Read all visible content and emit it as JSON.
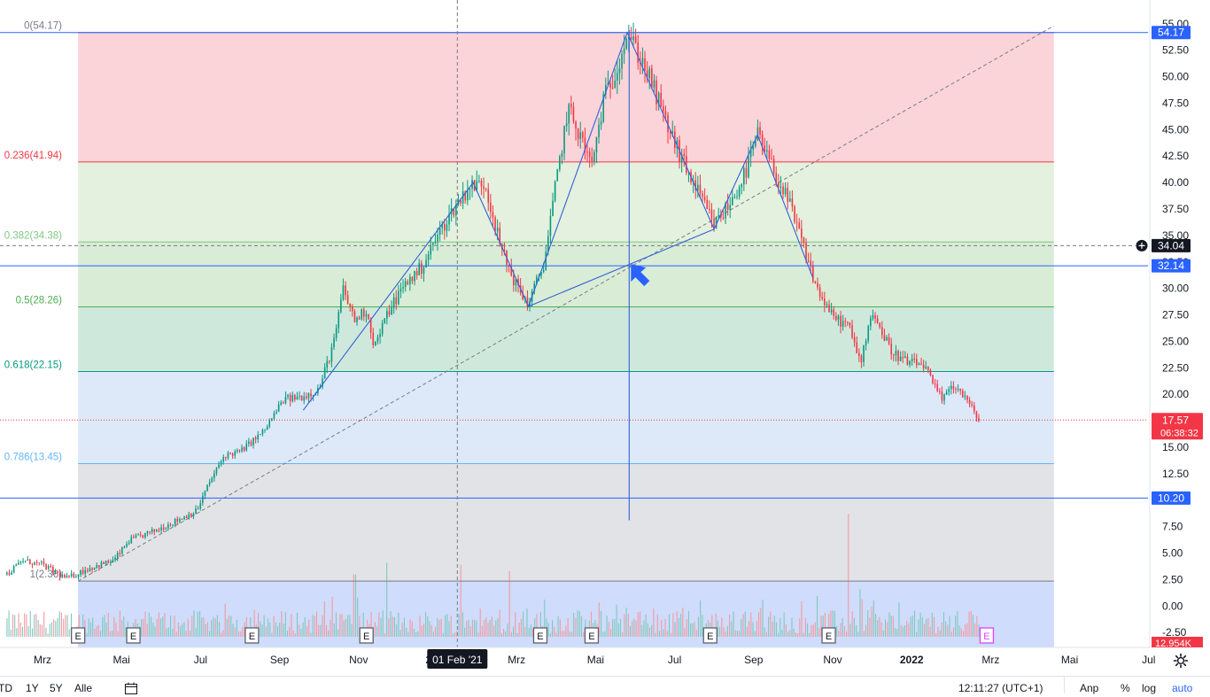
{
  "chart_data": {
    "type": "candlestick",
    "ylim": [
      -2.9,
      55.4
    ],
    "y_ticks": [
      "55.00",
      "52.50",
      "50.00",
      "47.50",
      "45.00",
      "42.50",
      "40.00",
      "37.50",
      "35.00",
      "32.50",
      "30.00",
      "27.50",
      "25.00",
      "22.50",
      "20.00",
      "17.50",
      "15.00",
      "12.50",
      "10.00",
      "7.50",
      "5.00",
      "2.50",
      "0.00",
      "-2.50"
    ],
    "x_ticks": [
      {
        "label": "Mrz",
        "t": 0.0
      },
      {
        "label": "Mai",
        "t": 2.0
      },
      {
        "label": "Jul",
        "t": 4.0
      },
      {
        "label": "Sep",
        "t": 6.0
      },
      {
        "label": "Nov",
        "t": 8.0
      },
      {
        "label": "2021",
        "t": 10.0
      },
      {
        "label": "Mrz",
        "t": 12.0
      },
      {
        "label": "Mai",
        "t": 14.0
      },
      {
        "label": "Jul",
        "t": 16.0
      },
      {
        "label": "Sep",
        "t": 18.0
      },
      {
        "label": "Nov",
        "t": 20.0
      },
      {
        "label": "2022",
        "t": 22.0
      },
      {
        "label": "Mrz",
        "t": 24.0
      },
      {
        "label": "Mai",
        "t": 26.0
      },
      {
        "label": "Jul",
        "t": 28.0
      }
    ],
    "price_path": [
      [
        -0.9,
        3.0
      ],
      [
        -0.5,
        4.3
      ],
      [
        0.0,
        3.9
      ],
      [
        0.6,
        2.6
      ],
      [
        1.2,
        3.6
      ],
      [
        1.8,
        4.3
      ],
      [
        2.2,
        6.2
      ],
      [
        2.9,
        7.2
      ],
      [
        3.4,
        8.1
      ],
      [
        3.9,
        9.0
      ],
      [
        4.2,
        11.5
      ],
      [
        4.6,
        14.2
      ],
      [
        5.0,
        14.6
      ],
      [
        5.6,
        16.5
      ],
      [
        6.1,
        19.5
      ],
      [
        6.6,
        19.8
      ],
      [
        7.0,
        20.5
      ],
      [
        7.4,
        25.2
      ],
      [
        7.6,
        30.0
      ],
      [
        7.9,
        27.0
      ],
      [
        8.2,
        28.0
      ],
      [
        8.4,
        24.5
      ],
      [
        8.8,
        28.2
      ],
      [
        9.2,
        30.5
      ],
      [
        9.6,
        32.0
      ],
      [
        10.0,
        35.0
      ],
      [
        10.4,
        37.5
      ],
      [
        10.8,
        39.6
      ],
      [
        11.2,
        40.0
      ],
      [
        11.6,
        33.8
      ],
      [
        12.0,
        30.2
      ],
      [
        12.3,
        28.5
      ],
      [
        12.7,
        32.5
      ],
      [
        13.0,
        40.0
      ],
      [
        13.3,
        47.0
      ],
      [
        13.6,
        44.5
      ],
      [
        13.9,
        41.5
      ],
      [
        14.2,
        47.8
      ],
      [
        14.5,
        50.5
      ],
      [
        14.8,
        54.17
      ],
      [
        15.3,
        50.5
      ],
      [
        15.8,
        45.5
      ],
      [
        16.2,
        42.0
      ],
      [
        16.6,
        39.0
      ],
      [
        17.0,
        36.0
      ],
      [
        17.4,
        38.0
      ],
      [
        17.8,
        41.0
      ],
      [
        18.1,
        44.5
      ],
      [
        18.4,
        42.0
      ],
      [
        18.9,
        38.0
      ],
      [
        19.3,
        33.5
      ],
      [
        19.6,
        30.0
      ],
      [
        20.0,
        27.3
      ],
      [
        20.4,
        26.5
      ],
      [
        20.7,
        23.0
      ],
      [
        21.0,
        28.0
      ],
      [
        21.2,
        26.2
      ],
      [
        21.5,
        24.0
      ],
      [
        21.9,
        23.0
      ],
      [
        22.3,
        22.8
      ],
      [
        22.6,
        20.5
      ],
      [
        22.8,
        19.4
      ],
      [
        23.0,
        21.0
      ],
      [
        23.3,
        20.0
      ],
      [
        23.5,
        18.8
      ],
      [
        23.7,
        17.57
      ]
    ],
    "volume_spikes": [
      [
        7.9,
        5.9
      ],
      [
        8.7,
        7.0
      ],
      [
        10.6,
        6.8
      ],
      [
        11.8,
        6.2
      ],
      [
        12.7,
        3.5
      ],
      [
        14.3,
        2.0
      ],
      [
        20.4,
        11.6
      ],
      [
        20.7,
        4.5
      ]
    ],
    "earnings_markers": [
      {
        "label": "E",
        "t": 0.9
      },
      {
        "label": "E",
        "t": 2.3
      },
      {
        "label": "E",
        "t": 5.3
      },
      {
        "label": "E",
        "t": 8.2
      },
      {
        "label": "E",
        "t": 12.6
      },
      {
        "label": "E",
        "t": 13.9
      },
      {
        "label": "E",
        "t": 16.9
      },
      {
        "label": "E",
        "t": 19.9
      },
      {
        "label": "E",
        "t": 23.9,
        "upcoming": true
      }
    ],
    "fibonacci": {
      "t_start": 0.9,
      "t_end": 25.6,
      "levels": [
        {
          "ratio": "0",
          "price": 54.17,
          "label": "0(54.17)",
          "fill": "#fad4d8",
          "line": "#787b86",
          "text": "#787b86"
        },
        {
          "ratio": "0.236",
          "price": 41.94,
          "label": "0.236(41.94)",
          "fill": "#e3f1de",
          "line": "#f23645",
          "text": "#f23645"
        },
        {
          "ratio": "0.382",
          "price": 34.38,
          "label": "0.382(34.38)",
          "fill": "#d9ecd5",
          "line": "#81c784",
          "text": "#81c784"
        },
        {
          "ratio": "0.5",
          "price": 28.26,
          "label": "0.5(28.26)",
          "fill": "#cfe8dc",
          "line": "#4caf50",
          "text": "#4caf50"
        },
        {
          "ratio": "0.618",
          "price": 22.15,
          "label": "0.618(22.15)",
          "fill": "#dde9f8",
          "line": "#089981",
          "text": "#089981"
        },
        {
          "ratio": "0.786",
          "price": 13.45,
          "label": "0.786(13.45)",
          "fill": "#e2e3e6",
          "line": "#64b5f6",
          "text": "#64b5f6"
        },
        {
          "ratio": "1",
          "price": 2.36,
          "label": "1(2.36)",
          "fill": "#cfdcfb",
          "line": "#787b86",
          "text": "#787b86"
        }
      ]
    },
    "horizontal_lines": [
      {
        "price": 54.17,
        "label": "54.17"
      },
      {
        "price": 32.14,
        "label": "32.14"
      },
      {
        "price": 10.2,
        "label": "10.20"
      }
    ],
    "trend_line": {
      "from": [
        0.9,
        2.36
      ],
      "to": [
        25.6,
        54.8
      ]
    },
    "pattern_polyline": [
      [
        6.6,
        18.5
      ],
      [
        10.9,
        40.0
      ],
      [
        12.3,
        28.3
      ],
      [
        14.8,
        54.17
      ],
      [
        17.0,
        35.6
      ],
      [
        18.1,
        44.5
      ],
      [
        19.5,
        31.0
      ]
    ],
    "pattern_diagonal": [
      [
        12.3,
        28.3
      ],
      [
        17.0,
        35.6
      ]
    ],
    "vertical_marker": {
      "t": 14.85,
      "top": 54.4,
      "bottom": 8.1
    },
    "crosshair": {
      "t": 10.5,
      "price": 34.04,
      "price_label": "34.04",
      "time_label": "01 Feb '21"
    },
    "last_price": {
      "price": 17.57,
      "label": "17.57",
      "countdown": "06:38:32"
    },
    "volume_label": "12.954K",
    "colors": {
      "up": "#089981",
      "down": "#f23645",
      "blue": "#2962ff",
      "line_blue": "#3361d8",
      "arrow": "#2962ff"
    }
  },
  "bottom_toolbar": {
    "ranges": [
      "TD",
      "1Y",
      "5Y",
      "Alle"
    ],
    "clock": "12:11:27 (UTC+1)",
    "adj": "Anp",
    "pct": "%",
    "log": "log",
    "auto": "auto"
  }
}
